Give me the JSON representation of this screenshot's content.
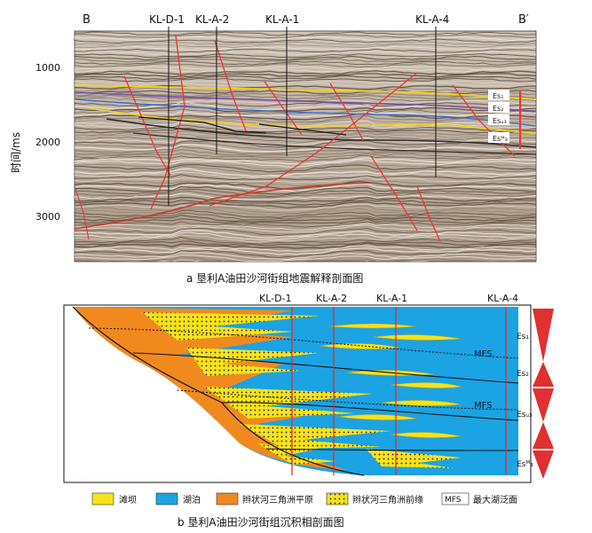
{
  "seismic": {
    "left_label": "B",
    "right_label": "B′",
    "y_axis_title": "时间/ms",
    "y_ticks": [
      "1000",
      "2000",
      "3000"
    ],
    "wells": [
      "KL-D-1",
      "KL-A-2",
      "KL-A-1",
      "KL-A-4"
    ],
    "formations": [
      "Es₁",
      "Es₂",
      "Esᵤ₃",
      "Esᴹ₃"
    ],
    "caption": "a  垦利A油田沙河街组地震解释剖面图"
  },
  "facies": {
    "wells": [
      "KL-D-1",
      "KL-A-2",
      "KL-A-1",
      "KL-A-4"
    ],
    "mfs_labels": [
      "MFS",
      "MFS"
    ],
    "formations": [
      "Es₁",
      "Es₂",
      "Esᵤ₃",
      "Esᴹ₃"
    ],
    "caption": "b  垦利A油田沙河街组沉积相剖面图"
  },
  "legend": [
    {
      "label": "滩坝",
      "color": "#f7e21b"
    },
    {
      "label": "湖泊",
      "color": "#1ba3e3"
    },
    {
      "label": "辫状河三角洲平原",
      "color": "#f08a1f"
    },
    {
      "label": "辫状河三角洲前缘",
      "color": "#f7e21b"
    },
    {
      "label": "最大湖泛面",
      "key": "MFS"
    }
  ],
  "colors": {
    "lake": "#1ba3e3",
    "delta_plain": "#f08a1f",
    "bar": "#f7e21b",
    "well": "#e03030"
  }
}
